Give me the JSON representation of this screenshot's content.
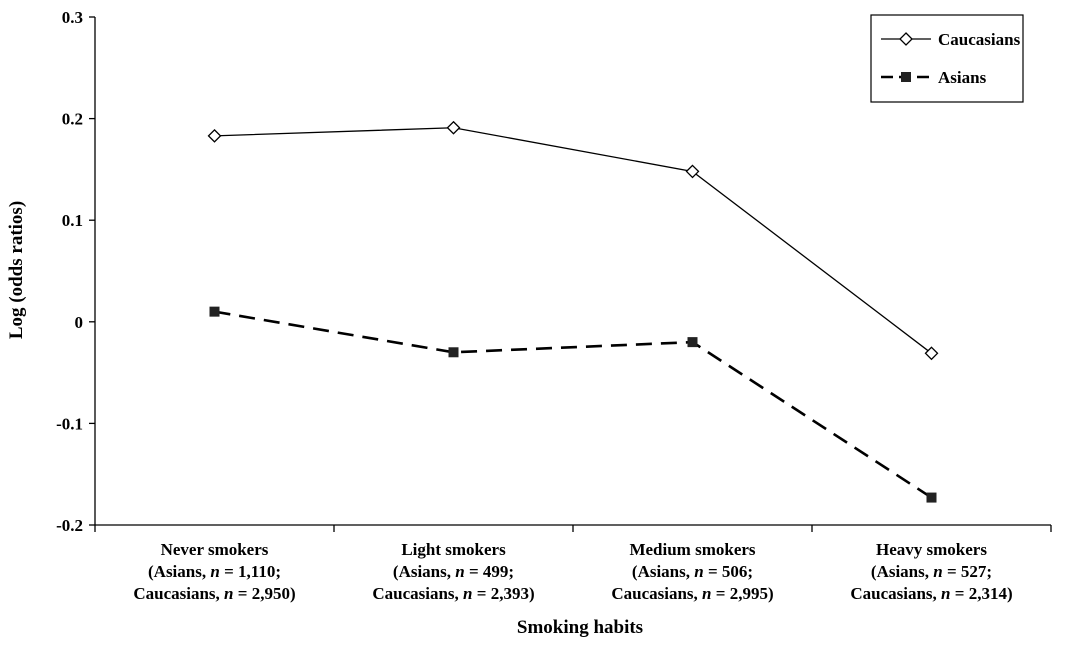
{
  "chart_data": {
    "type": "line",
    "xlabel": "Smoking habits",
    "ylabel": "Log (odds ratios)",
    "ylim": [
      -0.2,
      0.3
    ],
    "yticks": [
      "0.3",
      "0.2",
      "0.1",
      "0",
      "-0.1",
      "-0.2"
    ],
    "grid": false,
    "legend_position": "top-right",
    "categories": [
      {
        "line1": "Never smokers",
        "line2_prefix": "(Asians, ",
        "line2_n": "n",
        "line2_suffix": " = 1,110;",
        "line3_prefix": "Caucasians, ",
        "line3_n": "n",
        "line3_suffix": " = 2,950)"
      },
      {
        "line1": "Light smokers",
        "line2_prefix": "(Asians, ",
        "line2_n": "n",
        "line2_suffix": " = 499;",
        "line3_prefix": "Caucasians, ",
        "line3_n": "n",
        "line3_suffix": " = 2,393)"
      },
      {
        "line1": "Medium smokers",
        "line2_prefix": "(Asians, ",
        "line2_n": "n",
        "line2_suffix": " = 506;",
        "line3_prefix": "Caucasians, ",
        "line3_n": "n",
        "line3_suffix": " = 2,995)"
      },
      {
        "line1": "Heavy smokers",
        "line2_prefix": "(Asians, ",
        "line2_n": "n",
        "line2_suffix": " = 527;",
        "line3_prefix": "Caucasians, ",
        "line3_n": "n",
        "line3_suffix": " = 2,314)"
      }
    ],
    "series": [
      {
        "name": "Caucasians",
        "values": [
          0.183,
          0.191,
          0.148,
          -0.031
        ],
        "marker": "open-diamond",
        "line": "solid",
        "color": "#000000"
      },
      {
        "name": "Asians",
        "values": [
          0.01,
          -0.03,
          -0.02,
          -0.173
        ],
        "marker": "filled-square",
        "line": "dashed",
        "color": "#000000"
      }
    ]
  }
}
